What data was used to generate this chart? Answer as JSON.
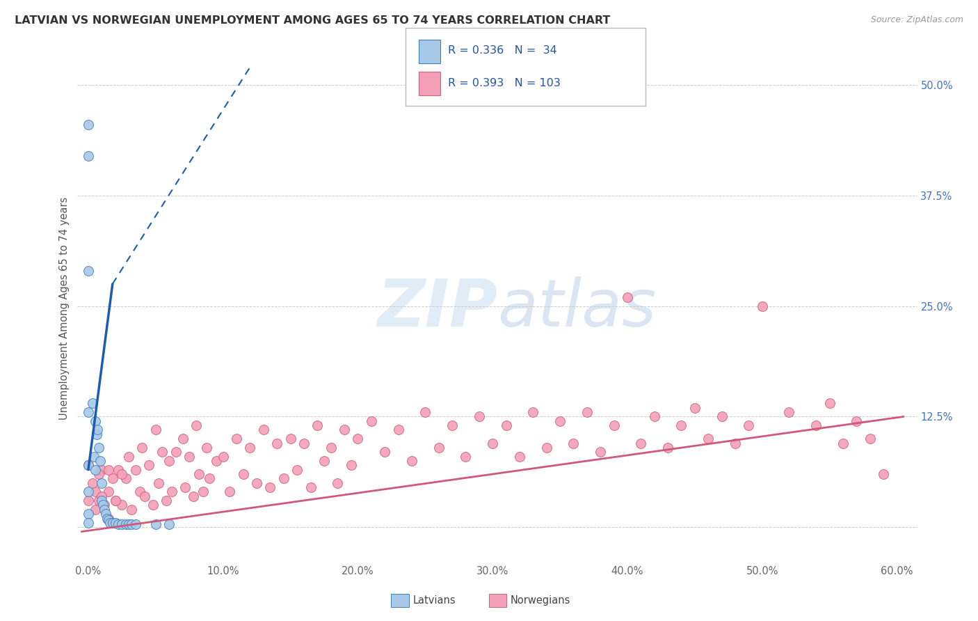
{
  "title": "LATVIAN VS NORWEGIAN UNEMPLOYMENT AMONG AGES 65 TO 74 YEARS CORRELATION CHART",
  "source": "Source: ZipAtlas.com",
  "ylabel": "Unemployment Among Ages 65 to 74 years",
  "xticklabels": [
    "0.0%",
    "10.0%",
    "20.0%",
    "30.0%",
    "40.0%",
    "50.0%",
    "60.0%"
  ],
  "xtick_vals": [
    0.0,
    0.1,
    0.2,
    0.3,
    0.4,
    0.5,
    0.6
  ],
  "ytick_positions": [
    0.0,
    0.125,
    0.25,
    0.375,
    0.5
  ],
  "ytick_labels": [
    "",
    "12.5%",
    "25.0%",
    "37.5%",
    "50.0%"
  ],
  "latvian_fill": "#a8c8e8",
  "latvian_edge": "#4080c0",
  "norwegian_fill": "#f4a0b8",
  "norwegian_edge": "#d06080",
  "lat_line_color": "#1a5cb0",
  "nor_line_color": "#d05878",
  "watermark_color": "#dce8f4",
  "legend_R_latvian": "0.336",
  "legend_N_latvian": "34",
  "legend_R_norwegian": "0.393",
  "legend_N_norwegian": "103",
  "lat_x": [
    0.0,
    0.0,
    0.0,
    0.0,
    0.0,
    0.0,
    0.0,
    0.0,
    0.003,
    0.004,
    0.005,
    0.005,
    0.006,
    0.007,
    0.008,
    0.009,
    0.01,
    0.01,
    0.011,
    0.012,
    0.013,
    0.014,
    0.015,
    0.016,
    0.018,
    0.02,
    0.022,
    0.025,
    0.028,
    0.03,
    0.032,
    0.035,
    0.05,
    0.06
  ],
  "lat_y": [
    0.455,
    0.42,
    0.29,
    0.13,
    0.07,
    0.04,
    0.015,
    0.005,
    0.14,
    0.08,
    0.12,
    0.065,
    0.105,
    0.11,
    0.09,
    0.075,
    0.05,
    0.03,
    0.025,
    0.02,
    0.015,
    0.01,
    0.008,
    0.005,
    0.005,
    0.005,
    0.003,
    0.003,
    0.003,
    0.003,
    0.003,
    0.003,
    0.003,
    0.003
  ],
  "nor_x": [
    0.005,
    0.008,
    0.01,
    0.012,
    0.015,
    0.015,
    0.018,
    0.02,
    0.022,
    0.025,
    0.028,
    0.03,
    0.032,
    0.035,
    0.038,
    0.04,
    0.042,
    0.045,
    0.048,
    0.05,
    0.052,
    0.055,
    0.058,
    0.06,
    0.062,
    0.065,
    0.07,
    0.072,
    0.075,
    0.078,
    0.08,
    0.082,
    0.085,
    0.088,
    0.09,
    0.095,
    0.1,
    0.105,
    0.11,
    0.115,
    0.12,
    0.125,
    0.13,
    0.135,
    0.14,
    0.145,
    0.15,
    0.155,
    0.16,
    0.165,
    0.17,
    0.175,
    0.18,
    0.185,
    0.19,
    0.195,
    0.2,
    0.21,
    0.22,
    0.23,
    0.24,
    0.25,
    0.26,
    0.27,
    0.28,
    0.29,
    0.3,
    0.31,
    0.32,
    0.33,
    0.34,
    0.35,
    0.36,
    0.37,
    0.38,
    0.39,
    0.4,
    0.41,
    0.42,
    0.43,
    0.44,
    0.45,
    0.46,
    0.47,
    0.48,
    0.49,
    0.5,
    0.52,
    0.54,
    0.55,
    0.56,
    0.57,
    0.58,
    0.59,
    0.0,
    0.0,
    0.003,
    0.005,
    0.008,
    0.01,
    0.015,
    0.02,
    0.025
  ],
  "nor_y": [
    0.04,
    0.03,
    0.065,
    0.025,
    0.04,
    0.01,
    0.055,
    0.03,
    0.065,
    0.025,
    0.055,
    0.08,
    0.02,
    0.065,
    0.04,
    0.09,
    0.035,
    0.07,
    0.025,
    0.11,
    0.05,
    0.085,
    0.03,
    0.075,
    0.04,
    0.085,
    0.1,
    0.045,
    0.08,
    0.035,
    0.115,
    0.06,
    0.04,
    0.09,
    0.055,
    0.075,
    0.08,
    0.04,
    0.1,
    0.06,
    0.09,
    0.05,
    0.11,
    0.045,
    0.095,
    0.055,
    0.1,
    0.065,
    0.095,
    0.045,
    0.115,
    0.075,
    0.09,
    0.05,
    0.11,
    0.07,
    0.1,
    0.12,
    0.085,
    0.11,
    0.075,
    0.13,
    0.09,
    0.115,
    0.08,
    0.125,
    0.095,
    0.115,
    0.08,
    0.13,
    0.09,
    0.12,
    0.095,
    0.13,
    0.085,
    0.115,
    0.26,
    0.095,
    0.125,
    0.09,
    0.115,
    0.135,
    0.1,
    0.125,
    0.095,
    0.115,
    0.25,
    0.13,
    0.115,
    0.14,
    0.095,
    0.12,
    0.1,
    0.06,
    0.07,
    0.03,
    0.05,
    0.02,
    0.06,
    0.035,
    0.065,
    0.03,
    0.06
  ]
}
